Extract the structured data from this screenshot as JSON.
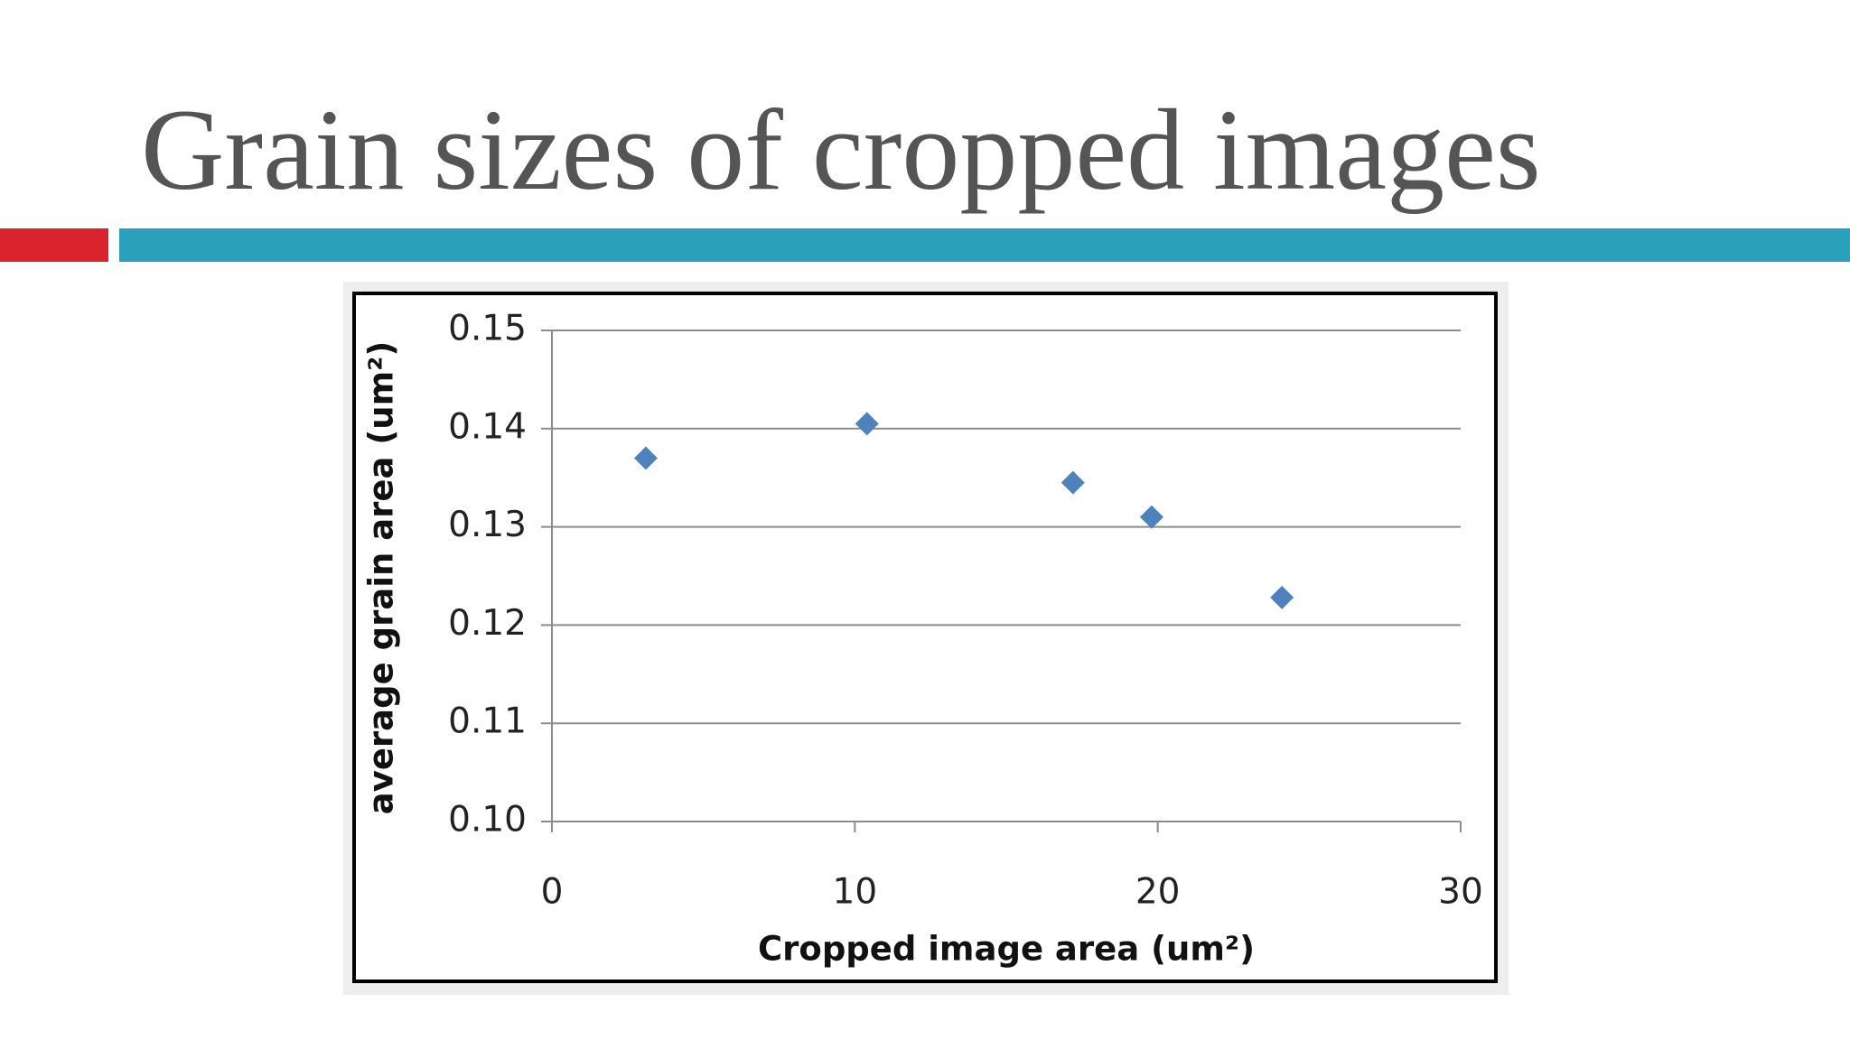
{
  "chart_data": {
    "type": "scatter",
    "title": "Grain sizes of cropped images",
    "x_label": "Cropped image area (um²)",
    "y_label": "average grain area (um²)",
    "x": [
      3.1,
      10.4,
      17.2,
      19.8,
      24.1
    ],
    "values": [
      0.137,
      0.1405,
      0.1345,
      0.131,
      0.1228
    ],
    "color": "#4f81bd",
    "xlim": [
      0,
      30
    ],
    "xticks": [
      0,
      10,
      20,
      30
    ],
    "ylim": [
      0.1,
      0.15
    ],
    "yticks": [
      {
        "value": 0.1,
        "label": "0.10"
      },
      0.11,
      0.12,
      0.13,
      0.14,
      0.15
    ],
    "grid": true
  }
}
